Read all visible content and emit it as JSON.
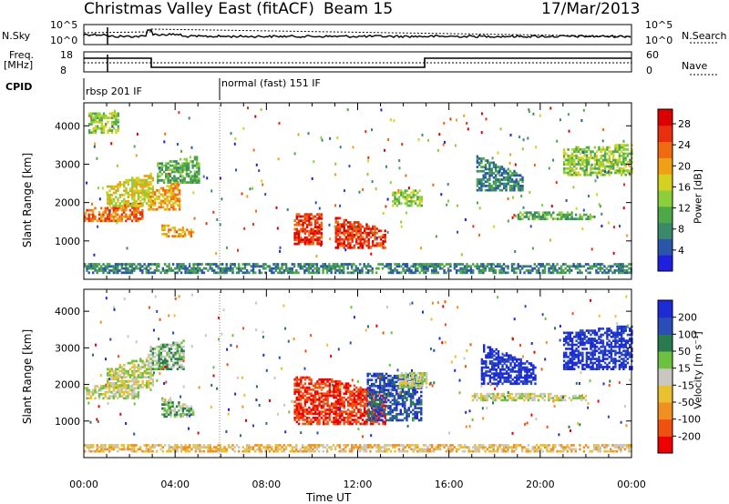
{
  "header": {
    "title": "Christmas Valley East (fitACF)",
    "beam": "Beam 15",
    "date": "17/Mar/2013"
  },
  "top_panels": {
    "nsky_label": "N.Sky",
    "nsearch_label": "N.Search",
    "nsky_ticks": [
      "10^5",
      "10^0"
    ],
    "nsearch_ticks": [
      "10^5",
      "10^0"
    ],
    "freq_label_1": "Freq.",
    "freq_label_2": "[MHz]",
    "freq_ticks": [
      "18",
      "8"
    ],
    "nave_label": "Nave",
    "nave_ticks": [
      "60",
      "0"
    ],
    "cpid_label": "CPID",
    "cpid_segments": [
      "rbsp 201 IF",
      "normal (fast) 151 IF"
    ]
  },
  "chart_data": [
    {
      "type": "heatmap",
      "name": "power-panel",
      "ylabel": "Slant Range [km]",
      "xlabel": "",
      "y_ticks": [
        1000,
        2000,
        3000,
        4000
      ],
      "ylim": [
        0,
        4600
      ],
      "colorbar_label": "Power [dB]",
      "colorbar_ticks": [
        4,
        8,
        12,
        16,
        20,
        24,
        28
      ],
      "colorbar_colors": [
        "#1f1fe0",
        "#2a55a8",
        "#3a8a6a",
        "#4ea848",
        "#8ccf3a",
        "#d6d020",
        "#f0a015",
        "#f06a10",
        "#e83010",
        "#dd0000"
      ]
    },
    {
      "type": "heatmap",
      "name": "velocity-panel",
      "ylabel": "Slant Range [km]",
      "xlabel": "Time UT",
      "x_ticks": [
        "00:00",
        "04:00",
        "08:00",
        "12:00",
        "16:00",
        "20:00",
        "00:00"
      ],
      "y_ticks": [
        1000,
        2000,
        3000,
        4000
      ],
      "ylim": [
        0,
        4600
      ],
      "colorbar_label": "Velocity [m s⁻¹]",
      "colorbar_ticks": [
        200,
        100,
        50,
        15,
        -15,
        -50,
        -100,
        -200
      ],
      "colorbar_colors": [
        "#1c2bd4",
        "#2a4db8",
        "#2a7a50",
        "#6ec040",
        "#c8c8c0",
        "#e8c030",
        "#f09020",
        "#f05010",
        "#ee0000"
      ]
    }
  ]
}
